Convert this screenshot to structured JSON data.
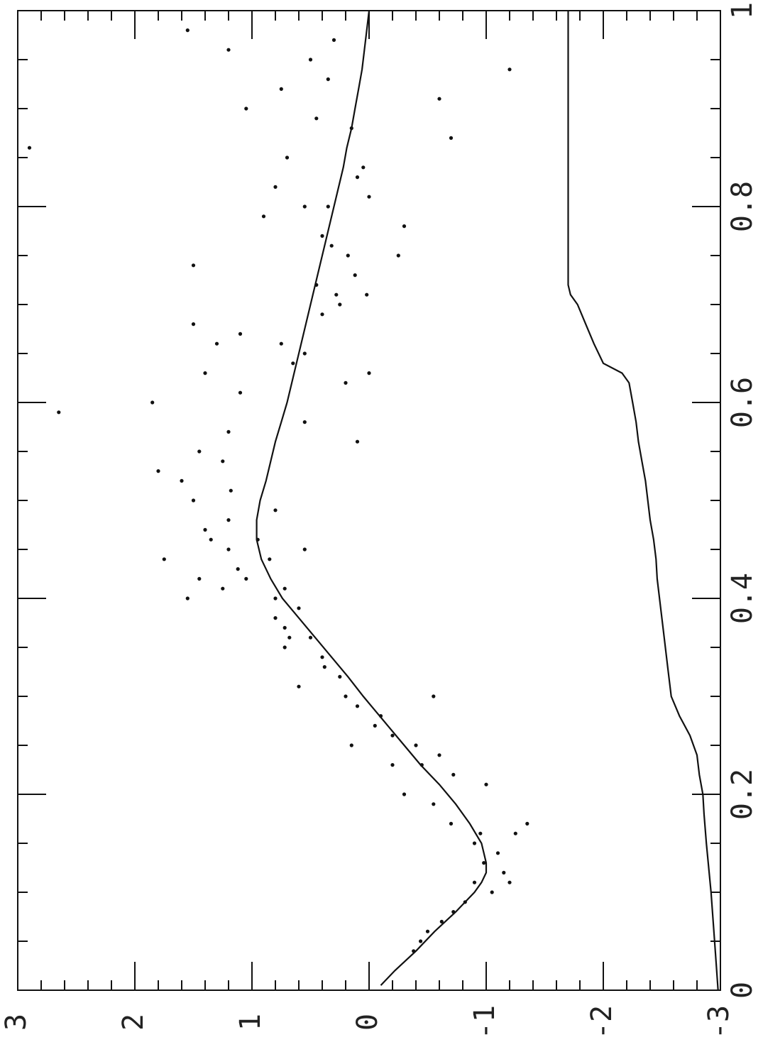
{
  "chart_data": {
    "type": "scatter",
    "orientation": "rotated-90-clockwise",
    "title": "",
    "xlabel": "",
    "ylabel": "",
    "xlim": [
      0,
      1
    ],
    "ylim": [
      -3,
      3
    ],
    "x_ticks": [
      {
        "value": 0,
        "label": "0"
      },
      {
        "value": 0.2,
        "label": "0.2"
      },
      {
        "value": 0.4,
        "label": "0.4"
      },
      {
        "value": 0.6,
        "label": "0.6"
      },
      {
        "value": 0.8,
        "label": "0.8"
      },
      {
        "value": 1,
        "label": "1"
      }
    ],
    "y_ticks": [
      {
        "value": 3,
        "label": "3"
      },
      {
        "value": 2,
        "label": "2"
      },
      {
        "value": 1,
        "label": "1"
      },
      {
        "value": 0,
        "label": "0"
      },
      {
        "value": -1,
        "label": "-1"
      },
      {
        "value": -2,
        "label": "-2"
      },
      {
        "value": -3,
        "label": "-3"
      }
    ],
    "grid": false,
    "series": [
      {
        "type": "line",
        "x": [
          0.005,
          0.02,
          0.04,
          0.06,
          0.08,
          0.1,
          0.11,
          0.12,
          0.13,
          0.14,
          0.15,
          0.17,
          0.19,
          0.21,
          0.23,
          0.25,
          0.27,
          0.29,
          0.3,
          0.32,
          0.34,
          0.36,
          0.38,
          0.4,
          0.42,
          0.44,
          0.46,
          0.48,
          0.5,
          0.52,
          0.54,
          0.56,
          0.58,
          0.6,
          0.62,
          0.64,
          0.66,
          0.68,
          0.7,
          0.72,
          0.74,
          0.76,
          0.78,
          0.8,
          0.82,
          0.84,
          0.86,
          0.88,
          0.9,
          0.92,
          0.94,
          0.96,
          0.98,
          1.0
        ],
        "y": [
          -0.1,
          -0.22,
          -0.4,
          -0.56,
          -0.74,
          -0.9,
          -0.96,
          -1.0,
          -1.0,
          -0.98,
          -0.96,
          -0.86,
          -0.74,
          -0.6,
          -0.44,
          -0.3,
          -0.16,
          -0.02,
          0.05,
          0.18,
          0.32,
          0.46,
          0.6,
          0.74,
          0.84,
          0.92,
          0.96,
          0.96,
          0.93,
          0.88,
          0.84,
          0.8,
          0.75,
          0.7,
          0.66,
          0.62,
          0.58,
          0.54,
          0.5,
          0.46,
          0.42,
          0.38,
          0.34,
          0.3,
          0.26,
          0.22,
          0.19,
          0.15,
          0.12,
          0.09,
          0.06,
          0.04,
          0.02,
          0.0
        ]
      },
      {
        "type": "line",
        "x": [
          0.0,
          0.05,
          0.1,
          0.15,
          0.18,
          0.2,
          0.22,
          0.24,
          0.26,
          0.28,
          0.3,
          0.33,
          0.36,
          0.38,
          0.4,
          0.42,
          0.44,
          0.46,
          0.48,
          0.5,
          0.52,
          0.54,
          0.56,
          0.58,
          0.6,
          0.62,
          0.63,
          0.64,
          0.66,
          0.68,
          0.7,
          0.71,
          0.72,
          0.8,
          0.9,
          1.0
        ],
        "y": [
          -2.98,
          -2.95,
          -2.92,
          -2.88,
          -2.86,
          -2.85,
          -2.82,
          -2.8,
          -2.74,
          -2.65,
          -2.58,
          -2.55,
          -2.52,
          -2.5,
          -2.48,
          -2.46,
          -2.45,
          -2.43,
          -2.4,
          -2.38,
          -2.36,
          -2.33,
          -2.3,
          -2.28,
          -2.25,
          -2.22,
          -2.16,
          -2.0,
          -1.92,
          -1.85,
          -1.78,
          -1.72,
          -1.7,
          -1.7,
          -1.7,
          -1.7
        ]
      },
      {
        "type": "scatter",
        "x": [
          0.04,
          0.05,
          0.06,
          0.07,
          0.08,
          0.09,
          0.1,
          0.11,
          0.11,
          0.12,
          0.13,
          0.14,
          0.15,
          0.16,
          0.16,
          0.17,
          0.17,
          0.19,
          0.2,
          0.21,
          0.22,
          0.23,
          0.23,
          0.24,
          0.25,
          0.25,
          0.26,
          0.27,
          0.28,
          0.29,
          0.3,
          0.3,
          0.31,
          0.32,
          0.33,
          0.34,
          0.35,
          0.36,
          0.36,
          0.37,
          0.38,
          0.39,
          0.4,
          0.4,
          0.41,
          0.41,
          0.42,
          0.42,
          0.43,
          0.44,
          0.44,
          0.45,
          0.45,
          0.46,
          0.46,
          0.47,
          0.48,
          0.49,
          0.5,
          0.51,
          0.52,
          0.53,
          0.54,
          0.55,
          0.56,
          0.57,
          0.58,
          0.59,
          0.6,
          0.61,
          0.62,
          0.63,
          0.63,
          0.64,
          0.65,
          0.66,
          0.66,
          0.67,
          0.68,
          0.69,
          0.7,
          0.71,
          0.71,
          0.72,
          0.73,
          0.74,
          0.75,
          0.75,
          0.76,
          0.77,
          0.78,
          0.79,
          0.8,
          0.8,
          0.81,
          0.82,
          0.83,
          0.84,
          0.85,
          0.86,
          0.87,
          0.88,
          0.89,
          0.9,
          0.91,
          0.92,
          0.93,
          0.94,
          0.95,
          0.96,
          0.97,
          0.98
        ],
        "y": [
          -0.38,
          -0.44,
          -0.5,
          -0.62,
          -0.72,
          -0.82,
          -1.05,
          -1.2,
          -0.9,
          -1.15,
          -0.98,
          -1.1,
          -0.9,
          -1.25,
          -0.95,
          -0.7,
          -1.35,
          -0.55,
          -0.3,
          -1.0,
          -0.72,
          -0.45,
          -0.2,
          -0.6,
          -0.4,
          0.15,
          -0.2,
          -0.05,
          -0.1,
          0.1,
          0.2,
          -0.55,
          0.6,
          0.25,
          0.38,
          0.4,
          0.72,
          0.5,
          0.68,
          0.72,
          0.8,
          0.6,
          1.55,
          0.8,
          1.25,
          0.72,
          1.45,
          1.05,
          1.12,
          1.75,
          0.85,
          1.2,
          0.55,
          1.35,
          0.95,
          1.4,
          1.2,
          0.8,
          1.5,
          1.18,
          1.6,
          1.8,
          1.25,
          1.45,
          0.1,
          1.2,
          0.55,
          2.65,
          1.85,
          1.1,
          0.2,
          1.4,
          0.0,
          0.65,
          0.55,
          1.3,
          0.75,
          1.1,
          1.5,
          0.4,
          0.25,
          0.28,
          0.02,
          0.45,
          0.12,
          1.5,
          0.18,
          -0.25,
          0.32,
          0.4,
          -0.3,
          0.9,
          0.55,
          0.35,
          0.0,
          0.8,
          0.1,
          0.05,
          0.7,
          2.9,
          -0.7,
          0.15,
          0.45,
          1.05,
          -0.6,
          0.75,
          0.35,
          -1.2,
          0.5,
          1.2,
          0.3,
          1.55
        ]
      }
    ]
  }
}
